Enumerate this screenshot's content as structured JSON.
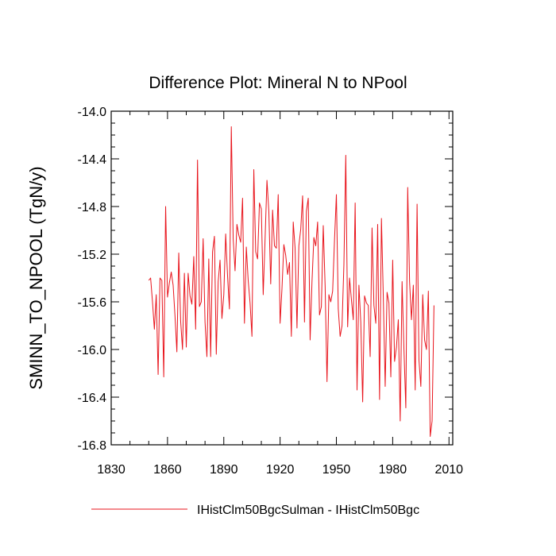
{
  "chart_data": {
    "type": "line",
    "title": "Difference Plot: Mineral N to NPool",
    "xlabel": "",
    "ylabel": "SMINN_TO_NPOOL  (TgN/y)",
    "xlim": [
      1830,
      2012
    ],
    "ylim": [
      -16.8,
      -14.0
    ],
    "x_ticks": [
      1830,
      1860,
      1890,
      1920,
      1950,
      1980,
      2010
    ],
    "x_tick_labels": [
      "1830",
      "1860",
      "1890",
      "1920",
      "1950",
      "1980",
      "2010"
    ],
    "y_ticks": [
      -14.0,
      -14.4,
      -14.8,
      -15.2,
      -15.6,
      -16.0,
      -16.4,
      -16.8
    ],
    "y_tick_labels": [
      "-14.0",
      "-14.4",
      "-14.8",
      "-15.2",
      "-15.6",
      "-16.0",
      "-16.4",
      "-16.8"
    ],
    "grid": false,
    "legend_position": "bottom",
    "series": [
      {
        "name": "IHistClm50BgcSulman - IHistClm50Bgc",
        "color": "#e8141c",
        "x_start": 1850,
        "x_step": 1,
        "values": [
          -15.42,
          -15.4,
          -15.6,
          -15.83,
          -15.54,
          -16.21,
          -15.4,
          -15.42,
          -16.23,
          -14.8,
          -15.56,
          -15.44,
          -15.35,
          -15.46,
          -15.72,
          -16.02,
          -15.19,
          -15.76,
          -16.0,
          -15.36,
          -15.98,
          -15.36,
          -15.55,
          -15.62,
          -15.22,
          -15.83,
          -14.41,
          -15.64,
          -15.6,
          -15.07,
          -15.77,
          -16.06,
          -15.24,
          -16.06,
          -15.18,
          -15.05,
          -16.04,
          -15.43,
          -15.25,
          -15.74,
          -15.54,
          -15.03,
          -15.38,
          -15.66,
          -14.13,
          -15.07,
          -15.34,
          -14.95,
          -15.04,
          -15.1,
          -14.73,
          -15.78,
          -15.14,
          -15.42,
          -15.61,
          -15.89,
          -14.49,
          -15.18,
          -15.24,
          -14.77,
          -14.82,
          -15.54,
          -15.07,
          -14.58,
          -14.84,
          -15.45,
          -14.83,
          -15.13,
          -15.15,
          -14.7,
          -15.78,
          -15.49,
          -15.12,
          -15.21,
          -15.37,
          -15.27,
          -15.89,
          -14.93,
          -15.15,
          -15.82,
          -15.13,
          -14.99,
          -14.71,
          -15.77,
          -14.84,
          -14.73,
          -15.92,
          -15.43,
          -15.06,
          -15.13,
          -14.93,
          -15.71,
          -15.64,
          -14.96,
          -15.47,
          -16.27,
          -15.54,
          -15.6,
          -15.51,
          -15.08,
          -14.7,
          -15.66,
          -15.89,
          -15.8,
          -15.29,
          -14.37,
          -15.81,
          -15.4,
          -15.58,
          -15.75,
          -14.77,
          -16.34,
          -15.46,
          -15.77,
          -16.44,
          -15.55,
          -15.61,
          -15.63,
          -16.06,
          -14.98,
          -15.63,
          -15.78,
          -14.95,
          -16.42,
          -14.9,
          -15.56,
          -16.31,
          -15.52,
          -15.61,
          -16.23,
          -15.25,
          -16.1,
          -15.98,
          -15.75,
          -16.6,
          -15.43,
          -16.0,
          -16.49,
          -14.64,
          -15.43,
          -15.75,
          -15.46,
          -16.34,
          -14.78,
          -16.09,
          -16.31,
          -15.54,
          -15.92,
          -16.0,
          -15.51,
          -16.73,
          -16.6,
          -15.63
        ]
      }
    ],
    "legend": [
      {
        "label": "IHistClm50BgcSulman - IHistClm50Bgc",
        "color": "#e8141c"
      }
    ]
  }
}
